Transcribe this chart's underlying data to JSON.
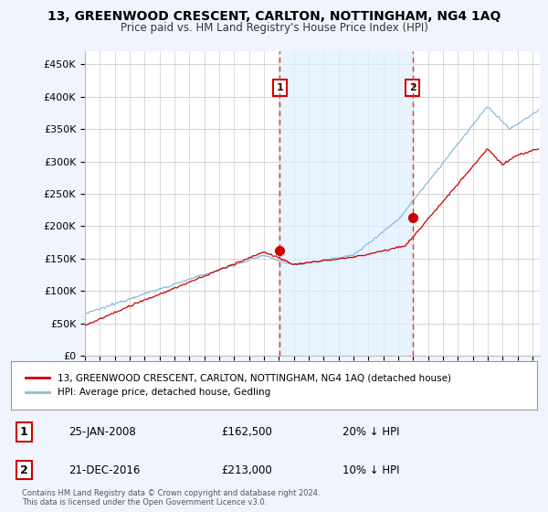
{
  "title": "13, GREENWOOD CRESCENT, CARLTON, NOTTINGHAM, NG4 1AQ",
  "subtitle": "Price paid vs. HM Land Registry's House Price Index (HPI)",
  "background_color": "#f0f4ff",
  "plot_background": "#ffffff",
  "shading_color": "#ddeeff",
  "ylim": [
    0,
    470000
  ],
  "yticks": [
    0,
    50000,
    100000,
    150000,
    200000,
    250000,
    300000,
    350000,
    400000,
    450000
  ],
  "ytick_labels": [
    "£0",
    "£50K",
    "£100K",
    "£150K",
    "£200K",
    "£250K",
    "£300K",
    "£350K",
    "£400K",
    "£450K"
  ],
  "xlim_start": 1995.0,
  "xlim_end": 2025.5,
  "transaction1": {
    "date_num": 2008.07,
    "price": 162500,
    "label": "1",
    "display_date": "25-JAN-2008",
    "display_price": "£162,500",
    "display_hpi": "20% ↓ HPI"
  },
  "transaction2": {
    "date_num": 2016.97,
    "price": 213000,
    "label": "2",
    "display_date": "21-DEC-2016",
    "display_price": "£213,000",
    "display_hpi": "10% ↓ HPI"
  },
  "legend_property": "13, GREENWOOD CRESCENT, CARLTON, NOTTINGHAM, NG4 1AQ (detached house)",
  "legend_hpi": "HPI: Average price, detached house, Gedling",
  "footer": "Contains HM Land Registry data © Crown copyright and database right 2024.\nThis data is licensed under the Open Government Licence v3.0.",
  "property_line_color": "#cc0000",
  "hpi_line_color": "#88bbd8",
  "vline_color": "#dd3333",
  "grid_color": "#cccccc",
  "border_color": "#cc0000"
}
